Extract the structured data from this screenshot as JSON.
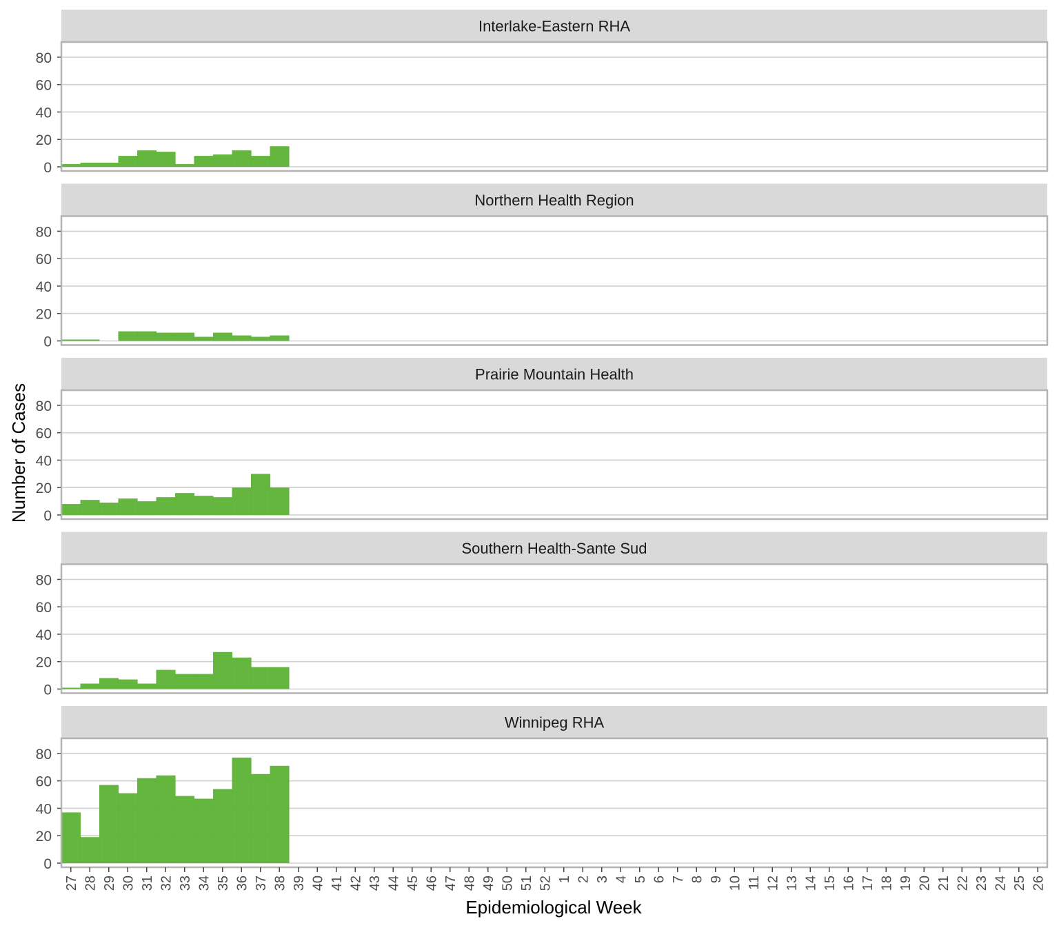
{
  "chart_data": {
    "type": "bar",
    "xlabel": "Epidemiological Week",
    "ylabel": "Number of Cases",
    "ylim": [
      0,
      88
    ],
    "yticks": [
      0,
      20,
      40,
      60,
      80
    ],
    "grid": true,
    "bar_color": "#5DB234",
    "strip_color": "#D9D9D9",
    "categories": [
      "27",
      "28",
      "29",
      "30",
      "31",
      "32",
      "33",
      "34",
      "35",
      "36",
      "37",
      "38",
      "39",
      "40",
      "41",
      "42",
      "43",
      "44",
      "45",
      "46",
      "47",
      "48",
      "49",
      "50",
      "51",
      "52",
      "1",
      "2",
      "3",
      "4",
      "5",
      "6",
      "7",
      "8",
      "9",
      "10",
      "11",
      "12",
      "13",
      "14",
      "15",
      "16",
      "17",
      "18",
      "19",
      "20",
      "21",
      "22",
      "23",
      "24",
      "25",
      "26"
    ],
    "panels": [
      {
        "title": "Interlake-Eastern RHA",
        "values": [
          2,
          3,
          3,
          8,
          12,
          11,
          2,
          8,
          9,
          12,
          8,
          15
        ]
      },
      {
        "title": "Northern Health Region",
        "values": [
          1,
          1,
          0,
          7,
          7,
          6,
          6,
          3,
          6,
          4,
          3,
          4
        ]
      },
      {
        "title": "Prairie Mountain Health",
        "values": [
          8,
          11,
          9,
          12,
          10,
          13,
          16,
          14,
          13,
          20,
          30,
          20
        ]
      },
      {
        "title": "Southern Health-Sante Sud",
        "values": [
          1,
          4,
          8,
          7,
          4,
          14,
          11,
          11,
          27,
          23,
          16,
          16
        ]
      },
      {
        "title": "Winnipeg RHA",
        "values": [
          37,
          19,
          57,
          51,
          62,
          64,
          49,
          47,
          54,
          77,
          65,
          71
        ]
      }
    ]
  }
}
